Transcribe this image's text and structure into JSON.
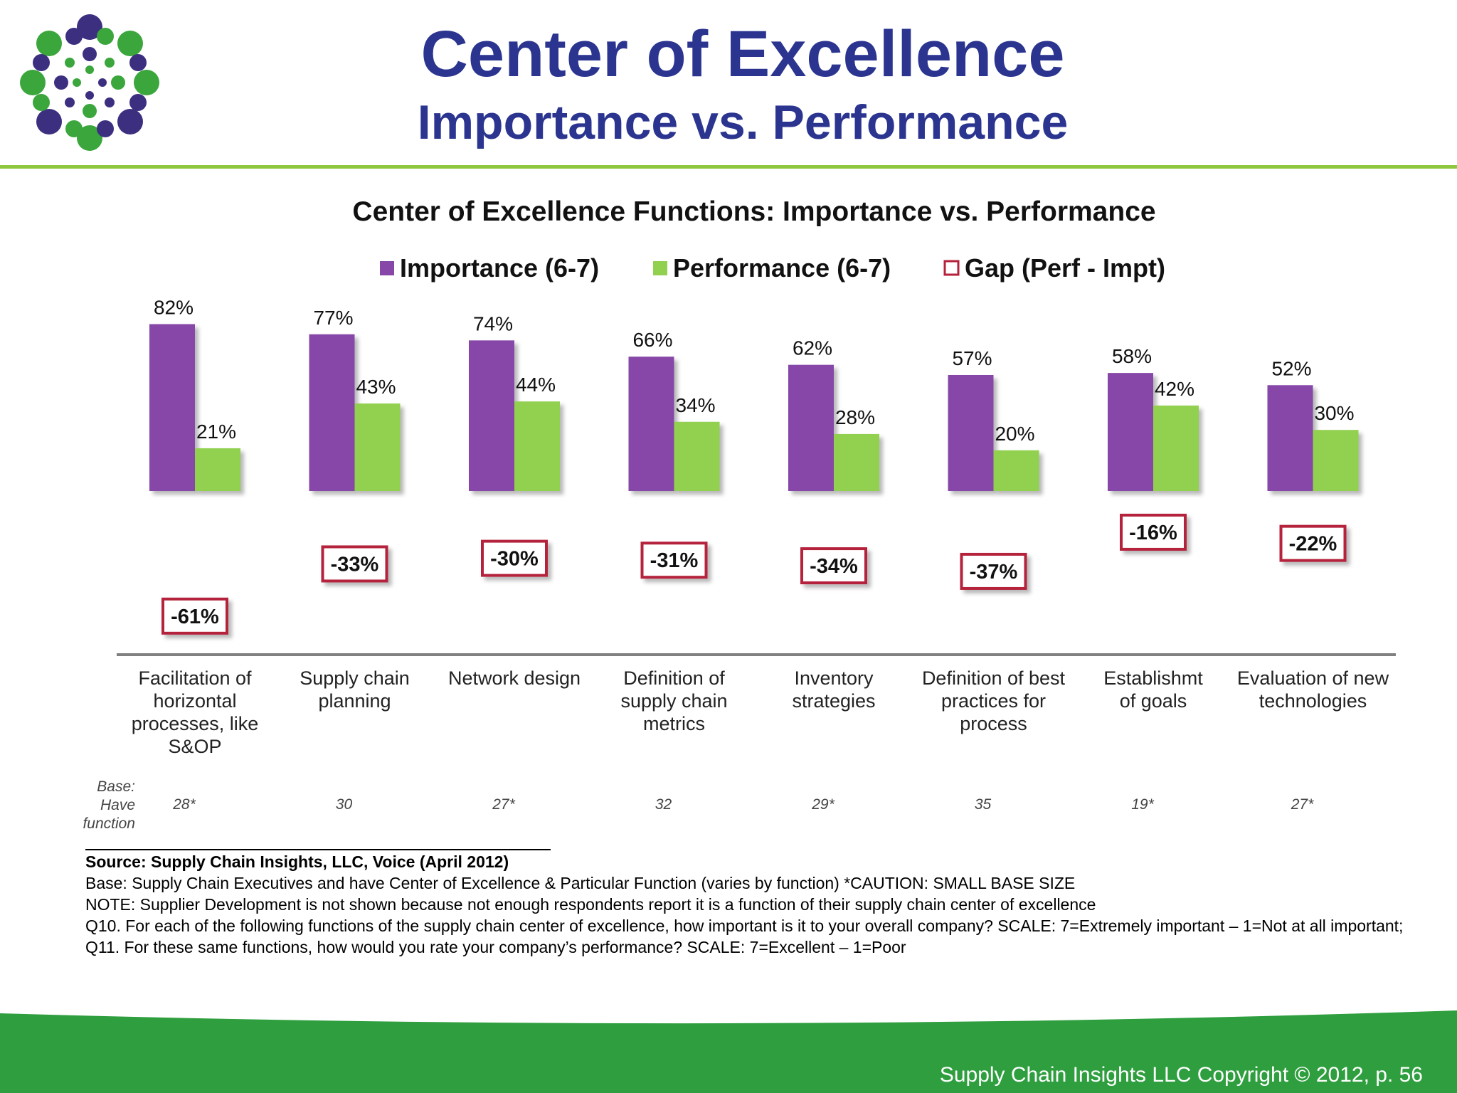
{
  "slide": {
    "title": "Center of Excellence",
    "subtitle": "Importance vs. Performance",
    "copyright": "Supply Chain Insights LLC Copyright © 2012, p. 56"
  },
  "colors": {
    "brand_navy": "#2b3590",
    "brand_green": "#8dc63f",
    "footer_green": "#2e9e3e",
    "importance": "#8647a8",
    "performance": "#92d050",
    "gap_border": "#b5213a"
  },
  "chart_data": {
    "type": "bar",
    "title": "Center of Excellence Functions:  Importance vs. Performance",
    "legend_position": "top",
    "grid": false,
    "ylim": [
      0,
      100
    ],
    "categories": [
      [
        "Facilitation of",
        "horizontal",
        "processes, like",
        "S&OP"
      ],
      [
        "Supply chain",
        "planning"
      ],
      [
        "Network design"
      ],
      [
        "Definition of",
        "supply chain",
        "metrics"
      ],
      [
        "Inventory",
        "strategies"
      ],
      [
        "Definition of best",
        "practices for",
        "process"
      ],
      [
        "Establishmt",
        "of goals"
      ],
      [
        "Evaluation of new",
        "technologies"
      ]
    ],
    "series": [
      {
        "name": "Importance (6-7)",
        "values": [
          82,
          77,
          74,
          66,
          62,
          57,
          58,
          52
        ],
        "labels": [
          "82%",
          "77%",
          "74%",
          "66%",
          "62%",
          "57%",
          "58%",
          "52%"
        ]
      },
      {
        "name": "Performance (6-7)",
        "values": [
          21,
          43,
          44,
          34,
          28,
          20,
          42,
          30
        ],
        "labels": [
          "21%",
          "43%",
          "44%",
          "34%",
          "28%",
          "20%",
          "42%",
          "30%"
        ]
      },
      {
        "name": "Gap (Perf - Impt)",
        "values": [
          -61,
          -33,
          -30,
          -31,
          -34,
          -37,
          -16,
          -22
        ],
        "labels": [
          "-61%",
          "-33%",
          "-30%",
          "-31%",
          "-34%",
          "-37%",
          "-16%",
          "-22%"
        ]
      }
    ],
    "base": {
      "label": [
        "Base:",
        "Have",
        "function"
      ],
      "values": [
        "28*",
        "30",
        "27*",
        "32",
        "29*",
        "35",
        "19*",
        "27*"
      ]
    }
  },
  "notes": {
    "source": "Source:  Supply Chain Insights, LLC, Voice (April 2012)",
    "base": "Base:  Supply Chain Executives and have Center of Excellence & Particular Function (varies by function) *CAUTION:  SMALL BASE SIZE",
    "note": "NOTE:  Supplier Development is not shown because not enough respondents report it is a function of their supply chain center of excellence",
    "questions": "Q10. For each of the following functions of the supply chain center of excellence, how important is it to your overall company?  SCALE:  7=Extremely important – 1=Not at all important; Q11. For these same functions, how would you rate your company’s performance? SCALE:  7=Excellent – 1=Poor"
  }
}
